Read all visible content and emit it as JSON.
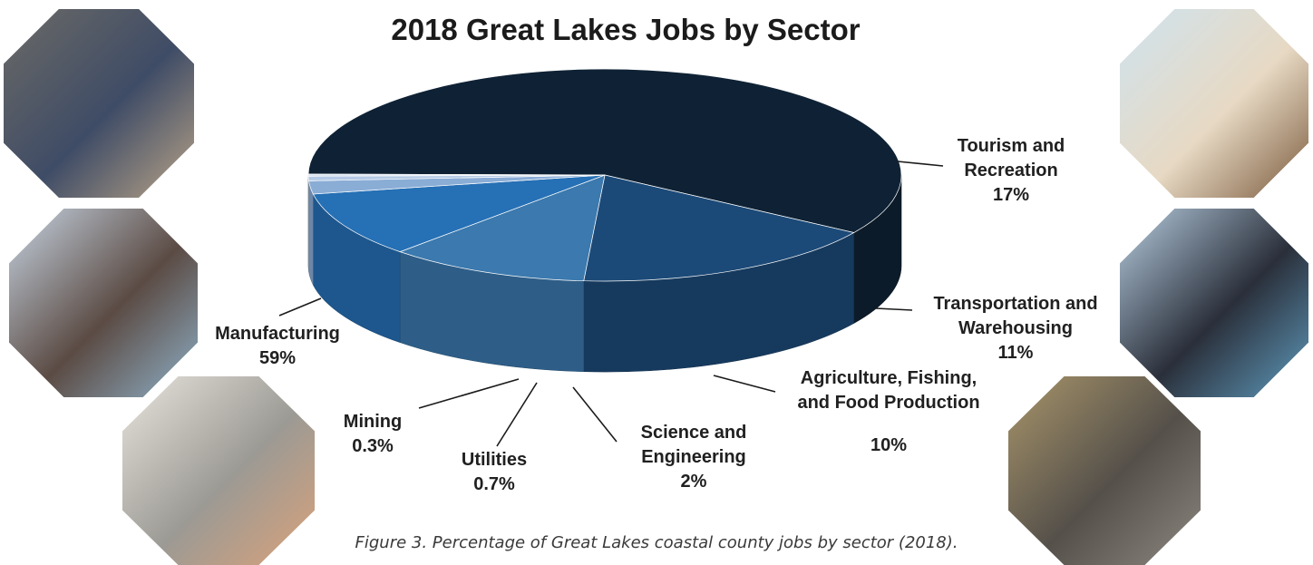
{
  "chart_data": {
    "type": "pie",
    "title": "2018 Great Lakes Jobs by Sector",
    "slices": [
      {
        "label_lines": [
          "Manufacturing"
        ],
        "value_label": "59%",
        "value": 59,
        "color": "#0f2235"
      },
      {
        "label_lines": [
          "Tourism and",
          "Recreation"
        ],
        "value_label": "17%",
        "value": 17,
        "color": "#1c4a78"
      },
      {
        "label_lines": [
          "Transportation and",
          "Warehousing"
        ],
        "value_label": "11%",
        "value": 11,
        "color": "#3b79ae"
      },
      {
        "label_lines": [
          "Agriculture, Fishing,",
          "and Food Production"
        ],
        "value_label": "10%",
        "value": 10,
        "color": "#2670b5"
      },
      {
        "label_lines": [
          "Science and",
          "Engineering"
        ],
        "value_label": "2%",
        "value": 2,
        "color": "#8aadd6"
      },
      {
        "label_lines": [
          "Utilities"
        ],
        "value_label": "0.7%",
        "value": 0.7,
        "color": "#b4cae6"
      },
      {
        "label_lines": [
          "Mining"
        ],
        "value_label": "0.3%",
        "value": 0.3,
        "color": "#d6e2f1"
      }
    ]
  },
  "caption": "Figure 3. Percentage of Great Lakes coastal county jobs by sector (2018).",
  "photos": [
    {
      "name": "photo-steel-worker",
      "subject": "worker operating machinery",
      "colors": [
        "#6b6a66",
        "#3f4c66",
        "#b9a488"
      ]
    },
    {
      "name": "photo-beach-restaurant",
      "subject": "beach restaurant with visitors",
      "colors": [
        "#cfe3ee",
        "#e7d9c4",
        "#7a5a3c"
      ]
    },
    {
      "name": "photo-power-plant",
      "subject": "power plant on waterfront",
      "colors": [
        "#c7d4e2",
        "#5b4b44",
        "#8fb1c8"
      ]
    },
    {
      "name": "photo-freighter-ship",
      "subject": "freighter ship on lake",
      "colors": [
        "#b7cde0",
        "#2a2f3a",
        "#5f9bbd"
      ]
    },
    {
      "name": "photo-kitchen-chefs",
      "subject": "chefs preparing food",
      "colors": [
        "#e8e4de",
        "#9c9a94",
        "#d9a27a"
      ]
    },
    {
      "name": "photo-apple-storage",
      "subject": "apple storage crates",
      "colors": [
        "#a8956a",
        "#55504a",
        "#8c8880"
      ]
    }
  ]
}
